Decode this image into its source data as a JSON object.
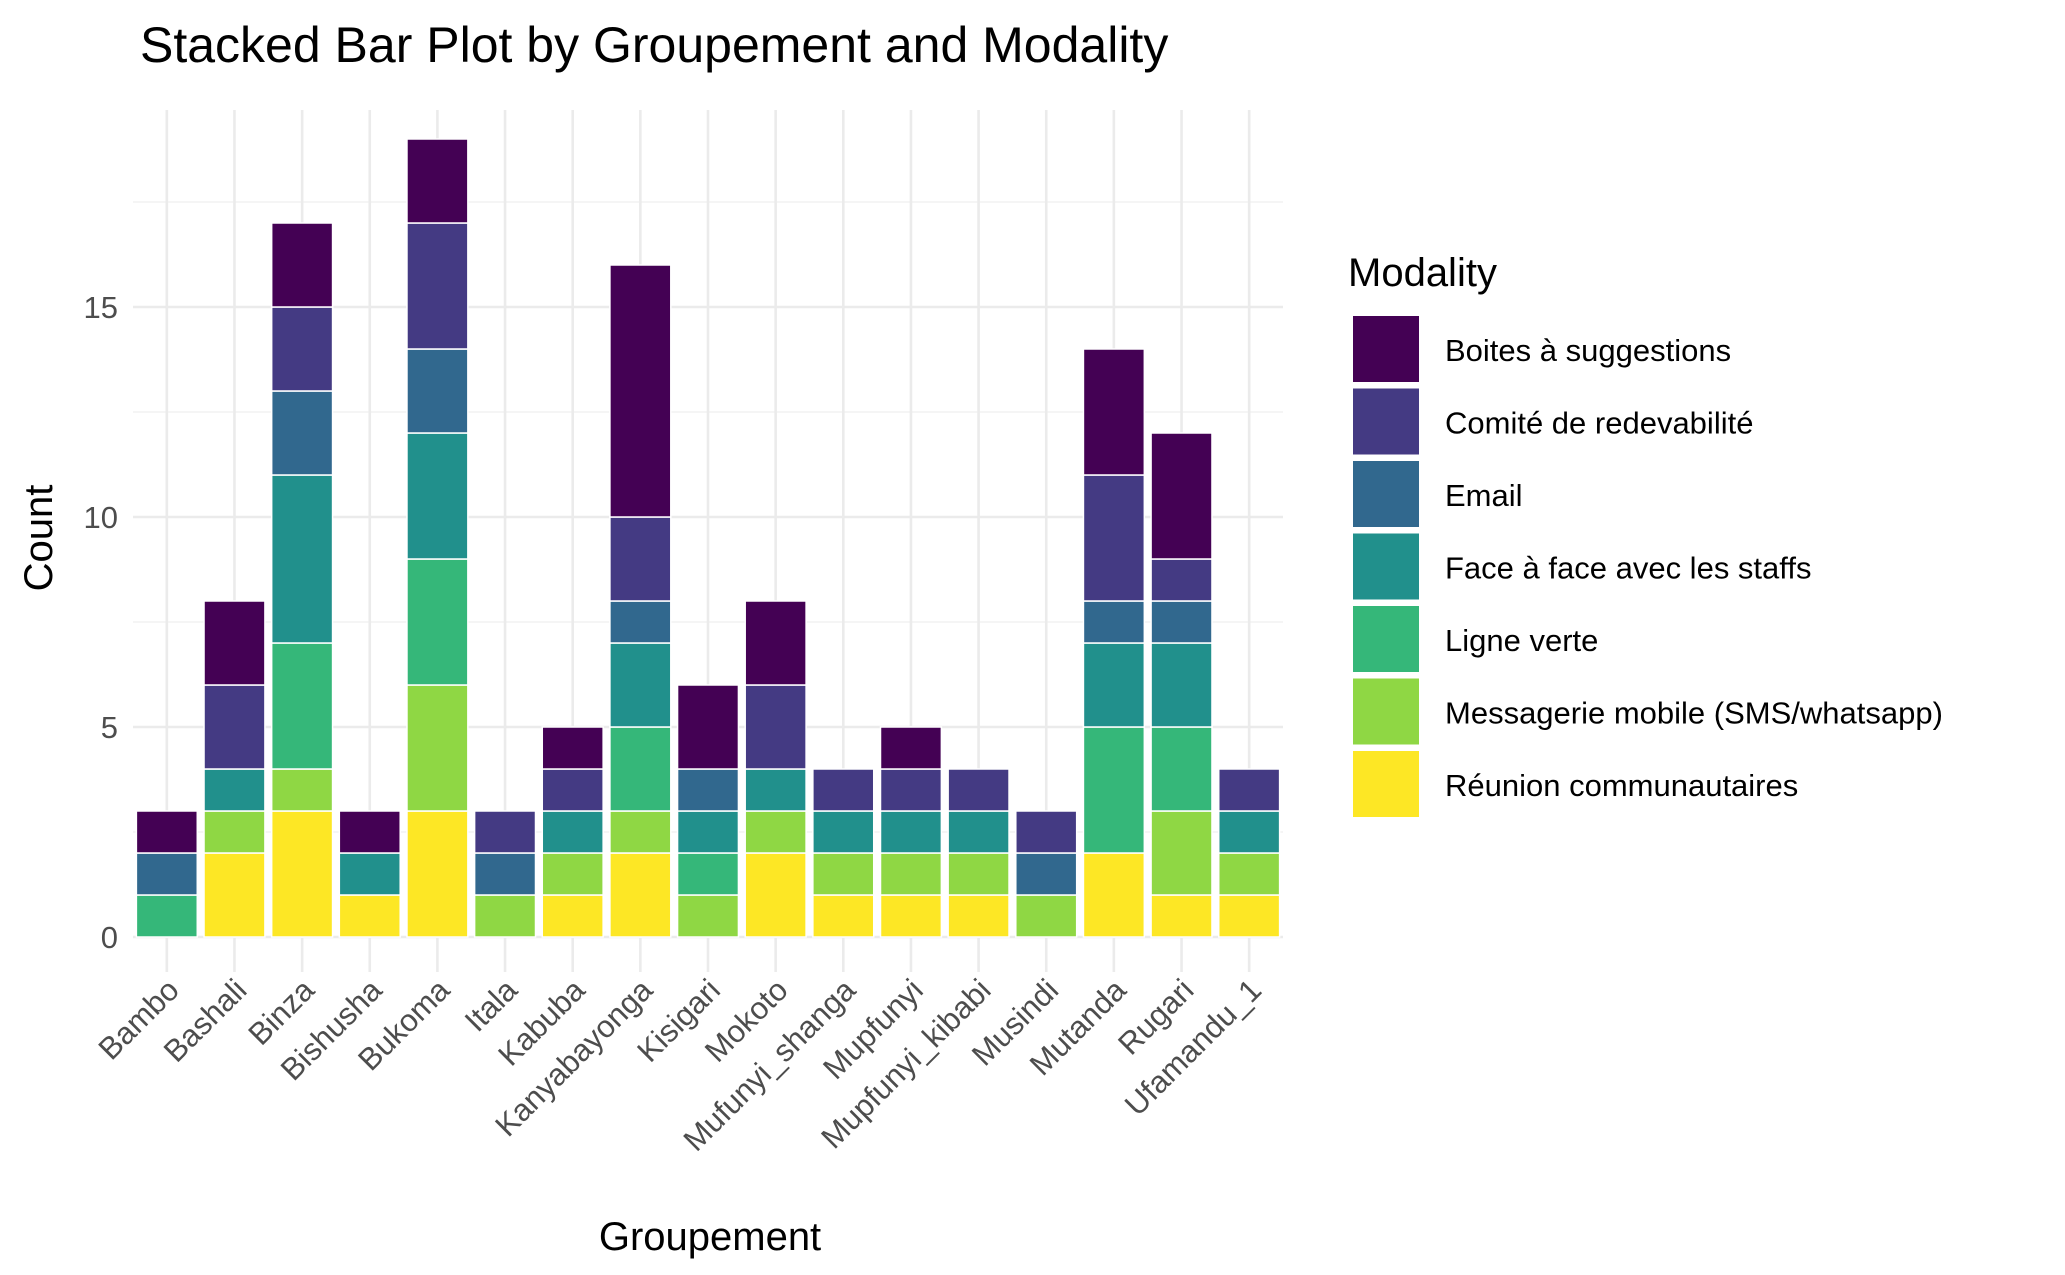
{
  "chart_data": {
    "type": "bar",
    "stacked": true,
    "title": "Stacked Bar Plot by Groupement and Modality",
    "xlabel": "Groupement",
    "ylabel": "Count",
    "ylim": [
      0,
      19.5
    ],
    "y_ticks": [
      0,
      5,
      10,
      15
    ],
    "grid": true,
    "legend_title": "Modality",
    "legend_position": "right",
    "categories": [
      "Bambo",
      "Bashali",
      "Binza",
      "Bishusha",
      "Bukoma",
      "Itala",
      "Kabuba",
      "Kanyabayonga",
      "Kisigari",
      "Mokoto",
      "Mufunyi_shanga",
      "Mupfunyi",
      "Mupfunyi_kibabi",
      "Musindi",
      "Mutanda",
      "Rugari",
      "Ufamandu_1"
    ],
    "series": [
      {
        "name": "Réunion communautaires",
        "color": "#FDE725",
        "values": [
          0,
          2,
          3,
          1,
          3,
          0,
          1,
          2,
          0,
          2,
          1,
          1,
          1,
          0,
          2,
          1,
          1
        ]
      },
      {
        "name": "Messagerie mobile (SMS/whatsapp)",
        "color": "#8FD744",
        "values": [
          0,
          1,
          1,
          0,
          3,
          1,
          1,
          1,
          1,
          1,
          1,
          1,
          1,
          1,
          0,
          2,
          1
        ]
      },
      {
        "name": "Ligne verte",
        "color": "#35B779",
        "values": [
          1,
          0,
          3,
          0,
          3,
          0,
          0,
          2,
          1,
          0,
          0,
          0,
          0,
          0,
          3,
          2,
          0
        ]
      },
      {
        "name": "Face à face avec les staffs",
        "color": "#21908C",
        "values": [
          0,
          1,
          4,
          1,
          3,
          0,
          1,
          2,
          1,
          1,
          1,
          1,
          1,
          0,
          2,
          2,
          1
        ]
      },
      {
        "name": "Email",
        "color": "#31688E",
        "values": [
          1,
          0,
          2,
          0,
          2,
          1,
          0,
          1,
          1,
          0,
          0,
          0,
          0,
          1,
          1,
          1,
          0
        ]
      },
      {
        "name": "Comité de redevabilité",
        "color": "#443A83",
        "values": [
          0,
          2,
          2,
          0,
          3,
          1,
          1,
          2,
          0,
          2,
          1,
          1,
          1,
          1,
          3,
          1,
          1
        ]
      },
      {
        "name": "Boites à suggestions",
        "color": "#440154",
        "values": [
          1,
          2,
          2,
          1,
          2,
          0,
          1,
          6,
          2,
          2,
          0,
          1,
          0,
          0,
          3,
          3,
          0
        ]
      }
    ],
    "legend_order": [
      "Boites à suggestions",
      "Comité de redevabilité",
      "Email",
      "Face à face avec les staffs",
      "Ligne verte",
      "Messagerie mobile (SMS/whatsapp)",
      "Réunion communautaires"
    ]
  }
}
